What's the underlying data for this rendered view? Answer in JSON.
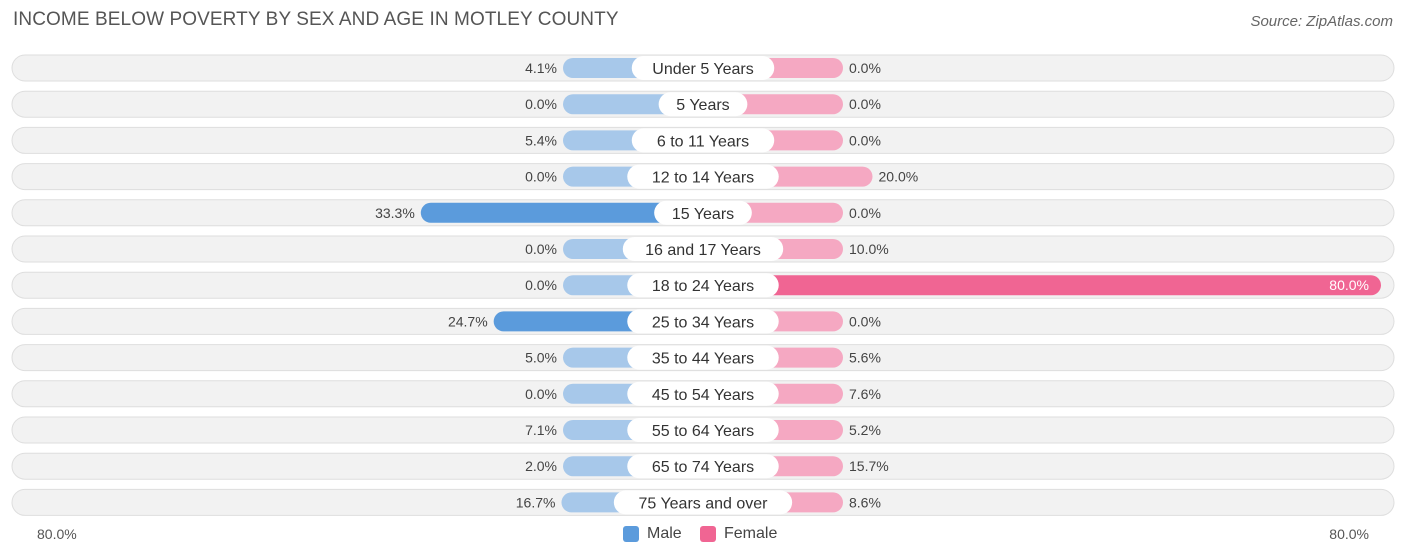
{
  "title": "INCOME BELOW POVERTY BY SEX AND AGE IN MOTLEY COUNTY",
  "source": "Source: ZipAtlas.com",
  "colors": {
    "male_strong": "#5b9bdc",
    "male_light": "#a7c8ea",
    "female_strong": "#f06593",
    "female_light": "#f5a8c2",
    "row_bg": "#f2f2f2",
    "row_border": "#dedede"
  },
  "chart_data": {
    "type": "bar",
    "orientation": "horizontal-diverging",
    "categories": [
      "Under 5 Years",
      "5 Years",
      "6 to 11 Years",
      "12 to 14 Years",
      "15 Years",
      "16 and 17 Years",
      "18 to 24 Years",
      "25 to 34 Years",
      "35 to 44 Years",
      "45 to 54 Years",
      "55 to 64 Years",
      "65 to 74 Years",
      "75 Years and over"
    ],
    "series": [
      {
        "name": "Male",
        "values": [
          4.1,
          0.0,
          5.4,
          0.0,
          33.3,
          0.0,
          0.0,
          24.7,
          5.0,
          0.0,
          7.1,
          2.0,
          16.7
        ],
        "labels": [
          "4.1%",
          "0.0%",
          "5.4%",
          "0.0%",
          "33.3%",
          "0.0%",
          "0.0%",
          "24.7%",
          "5.0%",
          "0.0%",
          "7.1%",
          "2.0%",
          "16.7%"
        ]
      },
      {
        "name": "Female",
        "values": [
          0.0,
          0.0,
          0.0,
          20.0,
          0.0,
          10.0,
          80.0,
          0.0,
          5.6,
          7.6,
          5.2,
          15.7,
          8.6
        ],
        "labels": [
          "0.0%",
          "0.0%",
          "0.0%",
          "20.0%",
          "0.0%",
          "10.0%",
          "80.0%",
          "0.0%",
          "5.6%",
          "7.6%",
          "5.2%",
          "15.7%",
          "8.6%"
        ]
      }
    ],
    "xlim": [
      -80,
      80
    ],
    "axis_min_label": "80.0%",
    "axis_max_label": "80.0%",
    "legend_position": "bottom-center"
  }
}
